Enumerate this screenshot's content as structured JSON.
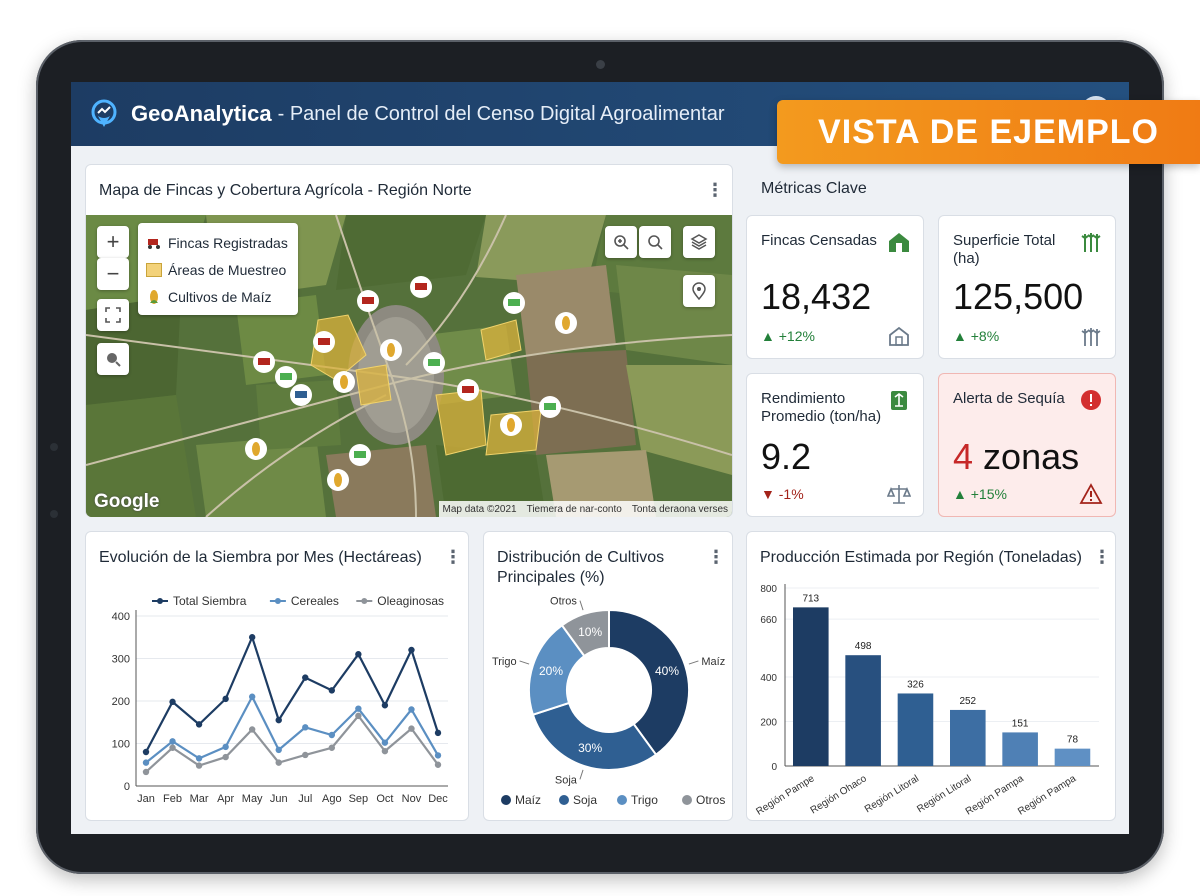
{
  "header": {
    "brand": "GeoAnalytica",
    "subtitle": "- Panel de Control del Censo Digital Agroalimentar"
  },
  "badge": "VISTA DE EJEMPLO",
  "map_card": {
    "title": "Mapa de Fincas y Cobertura Agrícola - Región Norte",
    "legend": [
      {
        "label": "Fincas Registradas",
        "icon": "tractor-icon"
      },
      {
        "label": "Áreas de Muestreo",
        "icon": "area-swatch"
      },
      {
        "label": "Cultivos de Maíz",
        "icon": "corn-icon"
      }
    ],
    "zoom_in": "+",
    "zoom_out": "−",
    "google": "Google",
    "footer": [
      "Map data ©2021",
      "Tiemera de nar-conto",
      "Tonta deraona verses"
    ]
  },
  "metrics": {
    "title": "Métricas Clave",
    "cards": [
      {
        "label": "Fincas Censadas",
        "value": "18,432",
        "delta": "▲ +12%",
        "icon": "barn-icon"
      },
      {
        "label": "Superficie Total (ha)",
        "value": "125,500",
        "delta": "▲ +8%",
        "icon": "wheat-icon"
      },
      {
        "label": "Rendimiento Promedio (ton/ha)",
        "value": "9.2",
        "delta": "▼ -1%",
        "icon": "scale-icon"
      },
      {
        "label": "Alerta de Sequía",
        "value_number": "4",
        "value_unit": "zonas",
        "delta": "▲ +15%",
        "icon": "alert-icon"
      }
    ]
  },
  "colors": {
    "dark": "#1d3c63",
    "mid": "#2f5f92",
    "light": "#6d9ac8",
    "grey": "#8f949a",
    "accent": "#f39a1e",
    "alert": "#d32f2f"
  },
  "chart_data": [
    {
      "type": "line",
      "title": "Evolución de la Siembra por Mes (Hectáreas)",
      "x": [
        "Jan",
        "Feb",
        "Mar",
        "Apr",
        "May",
        "Jun",
        "Jul",
        "Ago",
        "Sep",
        "Oct",
        "Nov",
        "Dec"
      ],
      "ylim": [
        0,
        400
      ],
      "yticks": [
        0,
        100,
        200,
        300,
        400
      ],
      "legend_position": "top",
      "series": [
        {
          "name": "Total Siembra",
          "color": "#1d3c63",
          "values": [
            80,
            198,
            145,
            205,
            350,
            155,
            255,
            225,
            310,
            190,
            320,
            125
          ]
        },
        {
          "name": "Cereales",
          "color": "#5b8fc2",
          "values": [
            55,
            105,
            65,
            92,
            210,
            85,
            138,
            120,
            182,
            102,
            180,
            72
          ]
        },
        {
          "name": "Oleaginosas",
          "color": "#8f949a",
          "values": [
            33,
            90,
            48,
            68,
            133,
            55,
            73,
            90,
            165,
            82,
            135,
            50
          ]
        }
      ]
    },
    {
      "type": "pie",
      "title": "Distribución de Cultivos Principales (%)",
      "legend_position": "bottom",
      "slices": [
        {
          "label": "Maíz",
          "value": 40,
          "color": "#1d3c63"
        },
        {
          "label": "Soja",
          "value": 30,
          "color": "#2f5f92"
        },
        {
          "label": "Trigo",
          "value": 20,
          "color": "#5b8fc2"
        },
        {
          "label": "Otros",
          "value": 10,
          "color": "#8f949a"
        }
      ]
    },
    {
      "type": "bar",
      "title": "Producción Estimada por Región (Toneladas)",
      "categories": [
        "Región Pampe",
        "Región Ohaco",
        "Región Litoral",
        "Región Litoral",
        "Región Pampa",
        "Región Pampa"
      ],
      "values": [
        713,
        498,
        326,
        252,
        151,
        78
      ],
      "ylim": [
        0,
        800
      ],
      "yticks": [
        0,
        200,
        400,
        660,
        800
      ],
      "colors": [
        "#1d3c63",
        "#28507f",
        "#2f5f92",
        "#3d6ea3",
        "#4f80b5",
        "#5f90c4"
      ]
    }
  ]
}
